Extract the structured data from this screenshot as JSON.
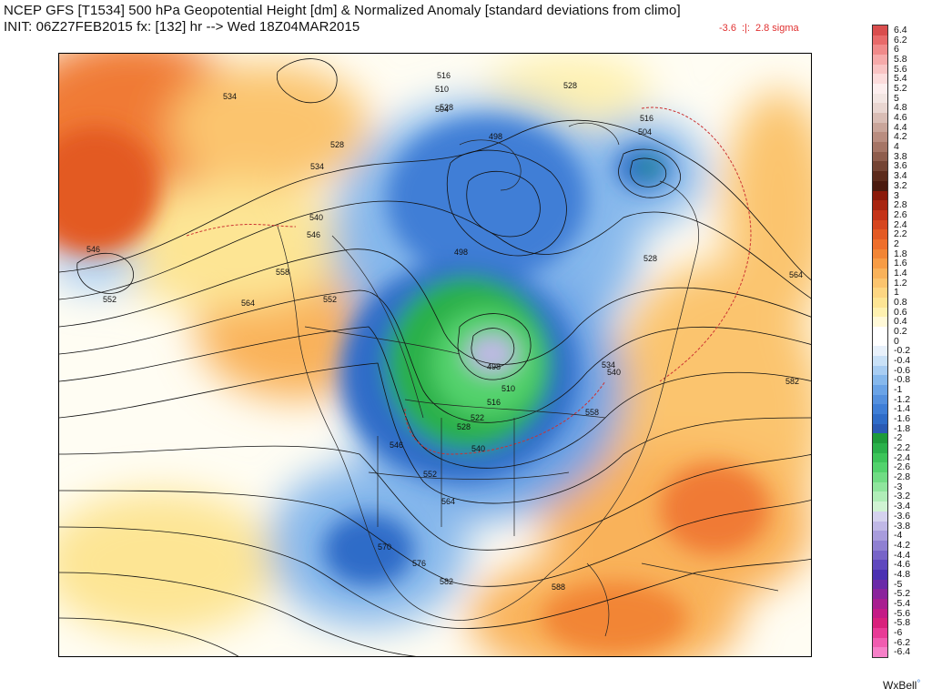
{
  "header": {
    "line1": "NCEP GFS [T1534] 500 hPa Geopotential Height [dm] & Normalized Anomaly [standard deviations from climo]",
    "line2": "INIT: 06Z27FEB2015 fx: [132] hr --> Wed 18Z04MAR2015",
    "min_label": "-3.6",
    "sep": ":|:",
    "max_label": "2.8 sigma"
  },
  "contour_labels": [
    {
      "text": "534"
    },
    {
      "text": "528"
    },
    {
      "text": "534"
    },
    {
      "text": "546"
    },
    {
      "text": "552"
    },
    {
      "text": "540"
    },
    {
      "text": "546"
    },
    {
      "text": "558"
    },
    {
      "text": "564"
    },
    {
      "text": "552"
    },
    {
      "text": "516"
    },
    {
      "text": "510"
    },
    {
      "text": "504"
    },
    {
      "text": "498"
    },
    {
      "text": "528"
    },
    {
      "text": "516"
    },
    {
      "text": "504"
    },
    {
      "text": "498"
    },
    {
      "text": "498"
    },
    {
      "text": "510"
    },
    {
      "text": "516"
    },
    {
      "text": "522"
    },
    {
      "text": "528"
    },
    {
      "text": "546"
    },
    {
      "text": "540"
    },
    {
      "text": "552"
    },
    {
      "text": "564"
    },
    {
      "text": "570"
    },
    {
      "text": "576"
    },
    {
      "text": "582"
    },
    {
      "text": "588"
    },
    {
      "text": "582"
    },
    {
      "text": "558"
    },
    {
      "text": "534"
    },
    {
      "text": "540"
    },
    {
      "text": "528"
    },
    {
      "text": "564"
    },
    {
      "text": "528"
    }
  ],
  "colorbar": {
    "labels": [
      "6.4",
      "6.2",
      "6",
      "5.8",
      "5.6",
      "5.4",
      "5.2",
      "5",
      "4.8",
      "4.6",
      "4.4",
      "4.2",
      "4",
      "3.8",
      "3.6",
      "3.4",
      "3.2",
      "3",
      "2.8",
      "2.6",
      "2.4",
      "2.2",
      "2",
      "1.8",
      "1.6",
      "1.4",
      "1.2",
      "1",
      "0.8",
      "0.6",
      "0.4",
      "0.2",
      "0",
      "-0.2",
      "-0.4",
      "-0.6",
      "-0.8",
      "-1",
      "-1.2",
      "-1.4",
      "-1.6",
      "-1.8",
      "-2",
      "-2.2",
      "-2.4",
      "-2.6",
      "-2.8",
      "-3",
      "-3.2",
      "-3.4",
      "-3.6",
      "-3.8",
      "-4",
      "-4.2",
      "-4.4",
      "-4.6",
      "-4.8",
      "-5",
      "-5.2",
      "-5.4",
      "-5.6",
      "-5.8",
      "-6",
      "-6.2",
      "-6.4"
    ],
    "colors": [
      "#d94d4d",
      "#e86a6a",
      "#f08a8a",
      "#f6aaaa",
      "#f9c4c4",
      "#fcdcdc",
      "#fdeeee",
      "#f3e6e3",
      "#e9d6d1",
      "#d9bdb5",
      "#c9a59a",
      "#b98d80",
      "#a57566",
      "#8e5d4d",
      "#744434",
      "#5c2b1c",
      "#4a1a0e",
      "#8b1a0a",
      "#a82510",
      "#c43318",
      "#d6461f",
      "#e35a24",
      "#ee6e2b",
      "#f28535",
      "#f79c45",
      "#f9b25a",
      "#fbc46e",
      "#fdd682",
      "#fde594",
      "#fef1b0",
      "#fff9d8",
      "#ffffff",
      "#ffffff",
      "#e8f1fb",
      "#c9e1f7",
      "#a8cdf2",
      "#86b8ec",
      "#6aa3e6",
      "#5490de",
      "#3f7ed6",
      "#2f6cc8",
      "#2a5ab4",
      "#1e9a3a",
      "#2ab04a",
      "#3cc459",
      "#52d26c",
      "#70dc84",
      "#8fe59d",
      "#b0edb8",
      "#d0f3d3",
      "#d5d2ee",
      "#c0b8e6",
      "#a89cdc",
      "#8f80d2",
      "#7764c8",
      "#5f48be",
      "#4a30b2",
      "#6a2aa8",
      "#8a249c",
      "#a81e90",
      "#c41a86",
      "#d8207c",
      "#e83a96",
      "#f05cb0",
      "#f680c8"
    ]
  },
  "brand": {
    "name": "WxBell",
    "mark": "°"
  }
}
